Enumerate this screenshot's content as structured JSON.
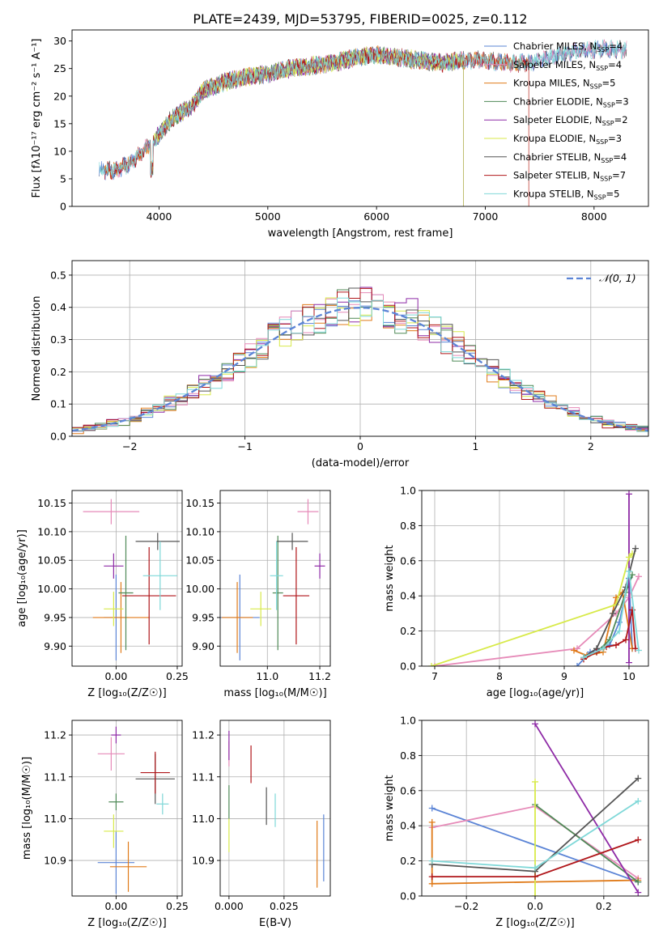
{
  "figure_title": "PLATE=2439, MJD=53795, FIBERID=0025, z=0.112",
  "colors": {
    "Chabrier MILES": "#5b84d6",
    "Salpeter MILES": "#e68ab8",
    "Kroupa MILES": "#e07b1a",
    "Chabrier ELODIE": "#4f8a57",
    "Salpeter ELODIE": "#8e2aa6",
    "Kroupa ELODIE": "#d8ea4a",
    "Chabrier STELIB": "#555555",
    "Salpeter STELIB": "#b0161a",
    "Kroupa STELIB": "#7fd8d8",
    "normal": "#5b84d6"
  },
  "chart_data": [
    {
      "type": "line",
      "id": "spectrum",
      "title": "PLATE=2439, MJD=53795, FIBERID=0025, z=0.112",
      "xlabel": "wavelength [Angstrom, rest frame]",
      "ylabel": "Flux [fλ10⁻¹⁷ erg cm⁻² s⁻¹ A⁻¹]",
      "xlim": [
        3200,
        8500
      ],
      "ylim": [
        0,
        32
      ],
      "xticks": [
        4000,
        5000,
        6000,
        7000,
        8000
      ],
      "yticks": [
        0,
        5,
        10,
        15,
        20,
        25,
        30
      ],
      "grid": false,
      "legend": "right",
      "continuum": {
        "x": [
          3450,
          3600,
          3750,
          3900,
          4000,
          4100,
          4200,
          4300,
          4400,
          4600,
          4800,
          5000,
          5200,
          5400,
          5600,
          5800,
          6000,
          6200,
          6400,
          6600,
          6800,
          7000,
          7200,
          7400,
          7600,
          7800,
          8000,
          8200,
          8300
        ],
        "y": [
          6.5,
          6.5,
          8,
          11,
          13,
          15.5,
          17,
          18,
          21,
          22.5,
          23.5,
          24,
          25,
          25.5,
          26,
          27,
          27.5,
          27,
          26.5,
          26,
          26.5,
          26.5,
          26,
          26,
          27,
          28,
          28.5,
          28.5,
          28.5
        ]
      },
      "series": [
        {
          "name": "Chabrier MILES",
          "nssp": "4",
          "x_range": [
            3450,
            8300
          ]
        },
        {
          "name": "Salpeter MILES",
          "nssp": "4",
          "x_range": [
            3500,
            8300
          ]
        },
        {
          "name": "Kroupa MILES",
          "nssp": "5",
          "x_range": [
            3500,
            7400
          ]
        },
        {
          "name": "Chabrier ELODIE",
          "nssp": "3",
          "x_range": [
            3900,
            6800
          ]
        },
        {
          "name": "Salpeter ELODIE",
          "nssp": "2",
          "x_range": [
            3900,
            6800
          ]
        },
        {
          "name": "Kroupa ELODIE",
          "nssp": "3",
          "x_range": [
            3920,
            6800
          ]
        },
        {
          "name": "Chabrier STELIB",
          "nssp": "4",
          "x_range": [
            3450,
            8300
          ]
        },
        {
          "name": "Salpeter STELIB",
          "nssp": "7",
          "x_range": [
            3500,
            7400
          ]
        },
        {
          "name": "Kroupa STELIB",
          "nssp": "5",
          "x_range": [
            3450,
            8300
          ]
        }
      ]
    },
    {
      "type": "histogram",
      "id": "residuals",
      "xlabel": "(data-model)/error",
      "ylabel": "Normed distribution",
      "xlim": [
        -2.5,
        2.5
      ],
      "ylim": [
        0,
        0.545
      ],
      "xticks": [
        -2,
        -1,
        0,
        1,
        2
      ],
      "yticks": [
        0.0,
        0.1,
        0.2,
        0.3,
        0.4,
        0.5
      ],
      "grid": true,
      "legend": "top-right",
      "curve_label": "𝒩(0, 1)",
      "bin_width": 0.1,
      "bin_start": -2.5,
      "offset_seeds": [
        1,
        2,
        3,
        4,
        5,
        6,
        7,
        8,
        9
      ]
    },
    {
      "type": "scatter",
      "id": "age_vs_Z",
      "xlabel": "Z [log₁₀(Z/Z☉)]",
      "ylabel": "age  [log₁₀(age/yr)]",
      "xlim": [
        -0.18,
        0.27
      ],
      "ylim": [
        9.865,
        10.172
      ],
      "xticks": [
        0.0,
        0.25
      ],
      "yticks": [
        9.9,
        9.95,
        10.0,
        10.05,
        10.1,
        10.15
      ],
      "xtick_labels": [
        "0.00",
        "0.25"
      ],
      "ytick_labels": [
        "9.90",
        "9.95",
        "10.00",
        "10.05",
        "10.10",
        "10.15"
      ],
      "grid": true,
      "points": [
        {
          "series": "Chabrier MILES",
          "x": 0.0,
          "y": 9.95,
          "xerr": 0.05,
          "yerr": 0.075
        },
        {
          "series": "Salpeter MILES",
          "x": -0.02,
          "y": 10.135,
          "xerr": 0.115,
          "yerr": 0.022
        },
        {
          "series": "Kroupa MILES",
          "x": 0.02,
          "y": 9.95,
          "xerr": 0.115,
          "yerr": 0.062
        },
        {
          "series": "Chabrier ELODIE",
          "x": 0.04,
          "y": 9.993,
          "xerr": 0.03,
          "yerr": 0.1
        },
        {
          "series": "Salpeter ELODIE",
          "x": -0.01,
          "y": 10.04,
          "xerr": 0.04,
          "yerr": 0.022
        },
        {
          "series": "Kroupa ELODIE",
          "x": -0.01,
          "y": 9.965,
          "xerr": 0.04,
          "yerr": 0.03
        },
        {
          "series": "Chabrier STELIB",
          "x": 0.17,
          "y": 10.083,
          "xerr": 0.09,
          "yerr": 0.015
        },
        {
          "series": "Salpeter STELIB",
          "x": 0.135,
          "y": 9.988,
          "xerr": 0.11,
          "yerr": 0.085
        },
        {
          "series": "Kroupa STELIB",
          "x": 0.18,
          "y": 10.023,
          "xerr": 0.07,
          "yerr": 0.06
        }
      ]
    },
    {
      "type": "scatter",
      "id": "age_vs_mass",
      "xlabel": "mass [log₁₀(M/M☉)]",
      "ylabel": "",
      "xlim": [
        10.82,
        11.24
      ],
      "ylim": [
        9.865,
        10.172
      ],
      "xticks": [
        11.0,
        11.2
      ],
      "yticks": [
        9.9,
        9.95,
        10.0,
        10.05,
        10.1,
        10.15
      ],
      "xtick_labels": [
        "11.0",
        "11.2"
      ],
      "ytick_labels": [
        "9.90",
        "9.95",
        "10.00",
        "10.05",
        "10.10",
        "10.15"
      ],
      "grid": true,
      "points": [
        {
          "series": "Chabrier MILES",
          "x": 10.895,
          "y": 9.95,
          "xerr": 0.075,
          "yerr": 0.075
        },
        {
          "series": "Salpeter MILES",
          "x": 11.155,
          "y": 10.135,
          "xerr": 0.04,
          "yerr": 0.022
        },
        {
          "series": "Kroupa MILES",
          "x": 10.885,
          "y": 9.95,
          "xerr": 0.06,
          "yerr": 0.062
        },
        {
          "series": "Chabrier ELODIE",
          "x": 11.04,
          "y": 9.993,
          "xerr": 0.02,
          "yerr": 0.1
        },
        {
          "series": "Salpeter ELODIE",
          "x": 11.2,
          "y": 10.04,
          "xerr": 0.02,
          "yerr": 0.022
        },
        {
          "series": "Kroupa ELODIE",
          "x": 10.975,
          "y": 9.965,
          "xerr": 0.04,
          "yerr": 0.03
        },
        {
          "series": "Chabrier STELIB",
          "x": 11.095,
          "y": 10.083,
          "xerr": 0.06,
          "yerr": 0.015
        },
        {
          "series": "Salpeter STELIB",
          "x": 11.11,
          "y": 9.988,
          "xerr": 0.05,
          "yerr": 0.085
        },
        {
          "series": "Kroupa STELIB",
          "x": 11.035,
          "y": 10.023,
          "xerr": 0.025,
          "yerr": 0.06
        }
      ]
    },
    {
      "type": "line",
      "id": "weight_vs_age",
      "xlabel": "age  [log₁₀(age/yr)]",
      "ylabel": "mass weight",
      "xlim": [
        6.8,
        10.3
      ],
      "ylim": [
        0,
        1
      ],
      "xticks": [
        7,
        8,
        9,
        10
      ],
      "yticks": [
        0.0,
        0.2,
        0.4,
        0.6,
        0.8,
        1.0
      ],
      "grid": true,
      "series": [
        {
          "name": "Chabrier MILES",
          "x": [
            9.2,
            9.4,
            9.7,
            9.85,
            10.0,
            10.05
          ],
          "y": [
            0.0,
            0.08,
            0.12,
            0.25,
            0.5,
            0.1
          ]
        },
        {
          "name": "Salpeter MILES",
          "x": [
            7.0,
            9.2,
            9.8,
            10.0,
            10.15
          ],
          "y": [
            0.0,
            0.1,
            0.3,
            0.39,
            0.51
          ]
        },
        {
          "name": "Kroupa MILES",
          "x": [
            9.15,
            9.35,
            9.6,
            9.8,
            9.9,
            10.05
          ],
          "y": [
            0.09,
            0.06,
            0.08,
            0.39,
            0.42,
            0.1
          ]
        },
        {
          "name": "Chabrier ELODIE",
          "x": [
            9.5,
            9.7,
            9.95,
            10.05
          ],
          "y": [
            0.08,
            0.15,
            0.42,
            0.52
          ]
        },
        {
          "name": "Salpeter ELODIE",
          "x": [
            10.0,
            10.0
          ],
          "y": [
            0.02,
            0.98
          ]
        },
        {
          "name": "Kroupa ELODIE",
          "x": [
            6.95,
            9.8,
            10.0,
            10.05
          ],
          "y": [
            0.0,
            0.35,
            0.62,
            0.64
          ]
        },
        {
          "name": "Chabrier STELIB",
          "x": [
            9.3,
            9.5,
            9.75,
            9.95,
            10.1
          ],
          "y": [
            0.05,
            0.1,
            0.3,
            0.45,
            0.67
          ]
        },
        {
          "name": "Salpeter STELIB",
          "x": [
            9.3,
            9.5,
            9.65,
            9.8,
            9.95,
            10.05,
            10.1
          ],
          "y": [
            0.04,
            0.08,
            0.11,
            0.12,
            0.15,
            0.32,
            0.1
          ]
        },
        {
          "name": "Kroupa STELIB",
          "x": [
            9.3,
            9.6,
            9.85,
            10.0,
            10.15
          ],
          "y": [
            0.05,
            0.1,
            0.2,
            0.54,
            0.09
          ]
        }
      ]
    },
    {
      "type": "scatter",
      "id": "mass_vs_Z",
      "xlabel": "Z [log₁₀(Z/Z☉)]",
      "ylabel": "mass [log₁₀(M/M☉)]",
      "xlim": [
        -0.18,
        0.27
      ],
      "ylim": [
        10.815,
        11.235
      ],
      "xticks": [
        0.0,
        0.25
      ],
      "yticks": [
        10.9,
        11.0,
        11.1,
        11.2
      ],
      "xtick_labels": [
        "0.00",
        "0.25"
      ],
      "ytick_labels": [
        "10.9",
        "11.0",
        "11.1",
        "11.2"
      ],
      "grid": true,
      "points": [
        {
          "series": "Chabrier MILES",
          "x": 0.0,
          "y": 10.895,
          "xerr": 0.075,
          "yerr": 0.075
        },
        {
          "series": "Salpeter MILES",
          "x": -0.02,
          "y": 11.155,
          "xerr": 0.055,
          "yerr": 0.04
        },
        {
          "series": "Kroupa MILES",
          "x": 0.05,
          "y": 10.885,
          "xerr": 0.075,
          "yerr": 0.06
        },
        {
          "series": "Chabrier ELODIE",
          "x": 0.0,
          "y": 11.04,
          "xerr": 0.03,
          "yerr": 0.02
        },
        {
          "series": "Salpeter ELODIE",
          "x": 0.0,
          "y": 11.2,
          "xerr": 0.02,
          "yerr": 0.02
        },
        {
          "series": "Kroupa ELODIE",
          "x": -0.01,
          "y": 10.97,
          "xerr": 0.04,
          "yerr": 0.04
        },
        {
          "series": "Chabrier STELIB",
          "x": 0.16,
          "y": 11.095,
          "xerr": 0.08,
          "yerr": 0.06
        },
        {
          "series": "Salpeter STELIB",
          "x": 0.16,
          "y": 11.11,
          "xerr": 0.06,
          "yerr": 0.05
        },
        {
          "series": "Kroupa STELIB",
          "x": 0.19,
          "y": 11.035,
          "xerr": 0.025,
          "yerr": 0.025
        }
      ]
    },
    {
      "type": "scatter",
      "id": "mass_vs_ebv",
      "xlabel": "E(B-V)",
      "ylabel": "",
      "xlim": [
        -0.004,
        0.046
      ],
      "ylim": [
        10.815,
        11.235
      ],
      "xticks": [
        0.0,
        0.025
      ],
      "yticks": [
        10.9,
        11.0,
        11.1,
        11.2
      ],
      "xtick_labels": [
        "0.000",
        "0.025"
      ],
      "ytick_labels": [
        "10.9",
        "11.0",
        "11.1",
        "11.2"
      ],
      "grid": true,
      "points": [
        {
          "series": "Chabrier MILES",
          "x": 0.043,
          "y": 10.93,
          "xerr": 0,
          "yerr": 0.08
        },
        {
          "series": "Salpeter MILES",
          "x": 0.0,
          "y": 11.155,
          "xerr": 0,
          "yerr": 0.03
        },
        {
          "series": "Kroupa MILES",
          "x": 0.04,
          "y": 10.915,
          "xerr": 0,
          "yerr": 0.08
        },
        {
          "series": "Chabrier ELODIE",
          "x": 0.0,
          "y": 11.04,
          "xerr": 0,
          "yerr": 0.04
        },
        {
          "series": "Salpeter ELODIE",
          "x": 0.0,
          "y": 11.175,
          "xerr": 0,
          "yerr": 0.035
        },
        {
          "series": "Kroupa ELODIE",
          "x": 0.0,
          "y": 10.96,
          "xerr": 0,
          "yerr": 0.04
        },
        {
          "series": "Chabrier STELIB",
          "x": 0.017,
          "y": 11.03,
          "xerr": 0,
          "yerr": 0.045
        },
        {
          "series": "Salpeter STELIB",
          "x": 0.01,
          "y": 11.13,
          "xerr": 0,
          "yerr": 0.045
        },
        {
          "series": "Kroupa STELIB",
          "x": 0.021,
          "y": 11.02,
          "xerr": 0,
          "yerr": 0.04
        }
      ]
    },
    {
      "type": "line",
      "id": "weight_vs_Z",
      "xlabel": "Z [log₁₀(Z/Z☉)]",
      "ylabel": "mass weight",
      "xlim": [
        -0.33,
        0.33
      ],
      "ylim": [
        0,
        1
      ],
      "xticks": [
        -0.2,
        0.0,
        0.2
      ],
      "yticks": [
        0.0,
        0.2,
        0.4,
        0.6,
        0.8,
        1.0
      ],
      "xtick_labels": [
        "−0.2",
        "0.0",
        "0.2"
      ],
      "ytick_labels": [
        "0.0",
        "0.2",
        "0.4",
        "0.6",
        "0.8",
        "1.0"
      ],
      "grid": true,
      "series": [
        {
          "name": "Chabrier MILES",
          "x": [
            -0.3,
            0.3
          ],
          "y": [
            0.5,
            0.08
          ]
        },
        {
          "name": "Salpeter MILES",
          "x": [
            -0.3,
            0.0,
            0.3
          ],
          "y": [
            0.39,
            0.51,
            0.1
          ]
        },
        {
          "name": "Kroupa MILES",
          "x": [
            -0.3,
            -0.3,
            0.0,
            0.3
          ],
          "y": [
            0.42,
            0.07,
            0.08,
            0.09
          ]
        },
        {
          "name": "Chabrier ELODIE",
          "x": [
            0.0,
            0.3
          ],
          "y": [
            0.52,
            0.08
          ]
        },
        {
          "name": "Salpeter ELODIE",
          "x": [
            0.0,
            0.3
          ],
          "y": [
            0.98,
            0.02
          ]
        },
        {
          "name": "Kroupa ELODIE",
          "x": [
            0.0,
            0.0
          ],
          "y": [
            0.65,
            0.0
          ]
        },
        {
          "name": "Chabrier STELIB",
          "x": [
            -0.3,
            0.0,
            0.3
          ],
          "y": [
            0.18,
            0.14,
            0.67
          ]
        },
        {
          "name": "Salpeter STELIB",
          "x": [
            -0.3,
            0.0,
            0.3
          ],
          "y": [
            0.11,
            0.11,
            0.32
          ]
        },
        {
          "name": "Kroupa STELIB",
          "x": [
            -0.3,
            0.0,
            0.3
          ],
          "y": [
            0.2,
            0.16,
            0.54
          ]
        }
      ]
    }
  ]
}
